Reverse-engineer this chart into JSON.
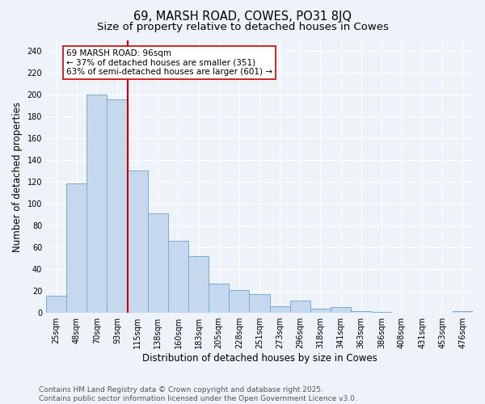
{
  "title": "69, MARSH ROAD, COWES, PO31 8JQ",
  "subtitle": "Size of property relative to detached houses in Cowes",
  "xlabel": "Distribution of detached houses by size in Cowes",
  "ylabel": "Number of detached properties",
  "categories": [
    "25sqm",
    "48sqm",
    "70sqm",
    "93sqm",
    "115sqm",
    "138sqm",
    "160sqm",
    "183sqm",
    "205sqm",
    "228sqm",
    "251sqm",
    "273sqm",
    "296sqm",
    "318sqm",
    "341sqm",
    "363sqm",
    "386sqm",
    "408sqm",
    "431sqm",
    "453sqm",
    "476sqm"
  ],
  "values": [
    16,
    119,
    200,
    196,
    131,
    91,
    66,
    52,
    27,
    21,
    17,
    6,
    11,
    4,
    5,
    2,
    1,
    0,
    0,
    0,
    2
  ],
  "bar_color": "#c5d8ed",
  "bar_edge_color": "#7aadd4",
  "vline_x_index": 3,
  "vline_color": "#cc0000",
  "annotation_text": "69 MARSH ROAD: 96sqm\n← 37% of detached houses are smaller (351)\n63% of semi-detached houses are larger (601) →",
  "annotation_box_color": "#ffffff",
  "annotation_box_edge_color": "#cc0000",
  "ylim": [
    0,
    250
  ],
  "yticks": [
    0,
    20,
    40,
    60,
    80,
    100,
    120,
    140,
    160,
    180,
    200,
    220,
    240
  ],
  "footer": "Contains HM Land Registry data © Crown copyright and database right 2025.\nContains public sector information licensed under the Open Government Licence v3.0.",
  "background_color": "#eef2f9",
  "grid_color": "#ffffff",
  "title_fontsize": 10.5,
  "subtitle_fontsize": 9.5,
  "xlabel_fontsize": 8.5,
  "ylabel_fontsize": 8.5,
  "tick_fontsize": 7,
  "footer_fontsize": 6.5,
  "annotation_fontsize": 7.5
}
